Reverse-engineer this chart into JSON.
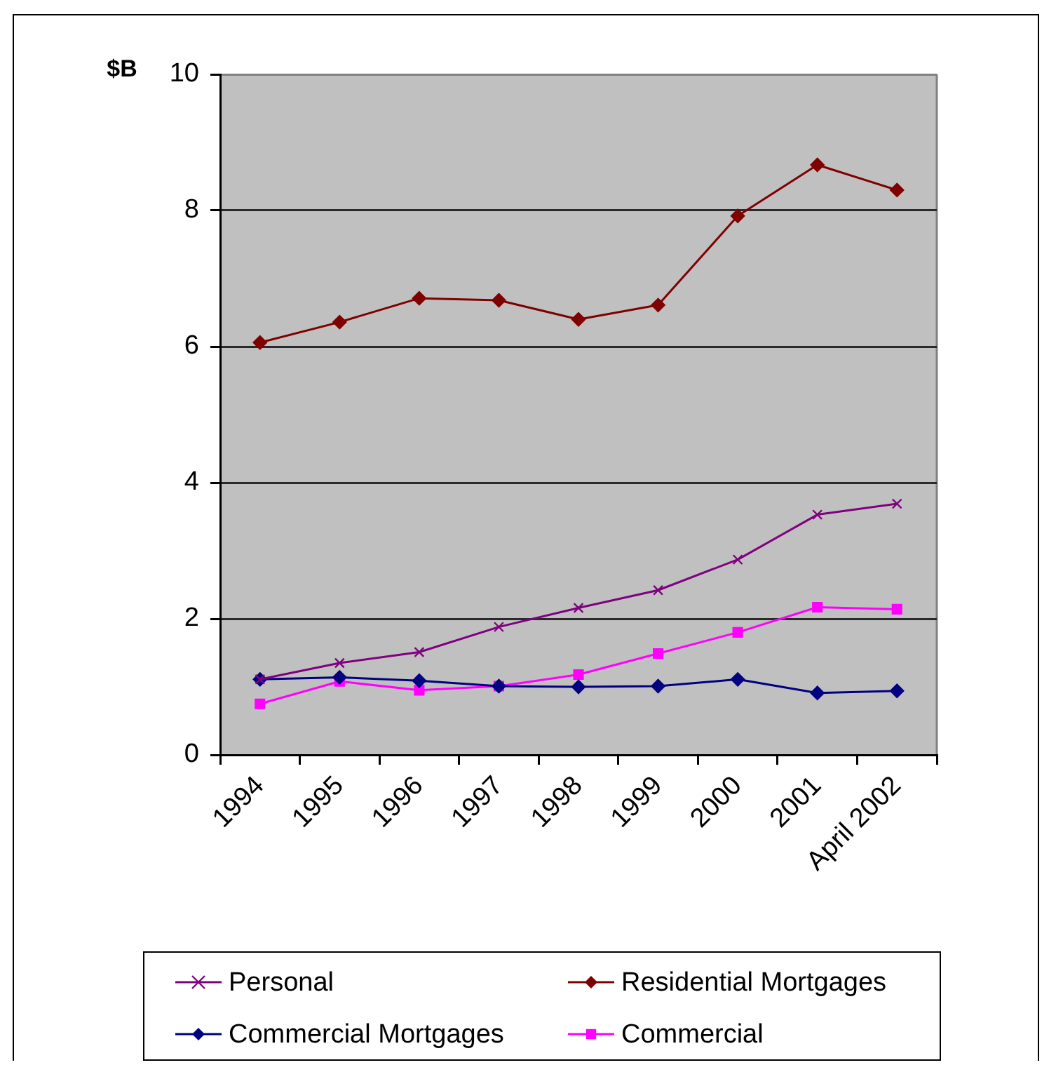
{
  "chart_data": {
    "type": "line",
    "ylabel": "$B",
    "categories": [
      "1994",
      "1995",
      "1996",
      "1997",
      "1998",
      "1999",
      "2000",
      "2001",
      "April 2002"
    ],
    "series": [
      {
        "name": "Personal",
        "color": "#800080",
        "marker": "cross",
        "values": [
          1.11,
          1.35,
          1.51,
          1.88,
          2.16,
          2.42,
          2.87,
          3.53,
          3.69
        ]
      },
      {
        "name": "Residential Mortgages",
        "color": "#800000",
        "marker": "diamond",
        "values": [
          6.06,
          6.36,
          6.71,
          6.68,
          6.4,
          6.61,
          7.92,
          8.67,
          8.3
        ]
      },
      {
        "name": "Commercial Mortgages",
        "color": "#000080",
        "marker": "diamond",
        "values": [
          1.11,
          1.14,
          1.09,
          1.01,
          1.0,
          1.01,
          1.11,
          0.91,
          0.94
        ]
      },
      {
        "name": "Commercial",
        "color": "#ff00ff",
        "marker": "square",
        "values": [
          0.75,
          1.08,
          0.95,
          1.01,
          1.18,
          1.49,
          1.8,
          2.17,
          2.14
        ]
      }
    ],
    "ylim": [
      0,
      10
    ],
    "yticks": [
      0,
      2,
      4,
      6,
      8,
      10
    ],
    "grid": "y",
    "legend": "bottom"
  }
}
